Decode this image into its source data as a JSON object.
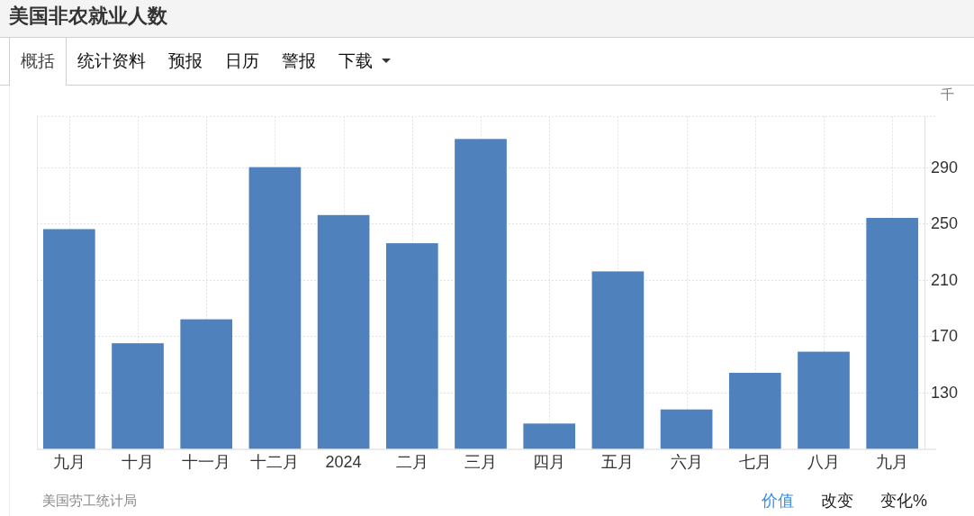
{
  "chart_data": {
    "type": "bar",
    "title": "美国非农就业人数",
    "ylabel": "千",
    "categories": [
      "九月",
      "十月",
      "十一月",
      "十二月",
      "2024",
      "二月",
      "三月",
      "四月",
      "五月",
      "六月",
      "七月",
      "八月",
      "九月"
    ],
    "values": [
      246,
      165,
      182,
      290,
      256,
      236,
      310,
      108,
      216,
      118,
      144,
      159,
      254
    ],
    "color": "#4f81bd",
    "ylim": [
      90,
      326
    ],
    "yticks": [
      130,
      170,
      210,
      250,
      290
    ],
    "grid": true,
    "annotations": [
      "概括",
      "统计资料",
      "预报",
      "日历",
      "警报",
      "下载",
      "美国劳工统计局",
      "价值",
      "改变",
      "变化%"
    ]
  }
}
